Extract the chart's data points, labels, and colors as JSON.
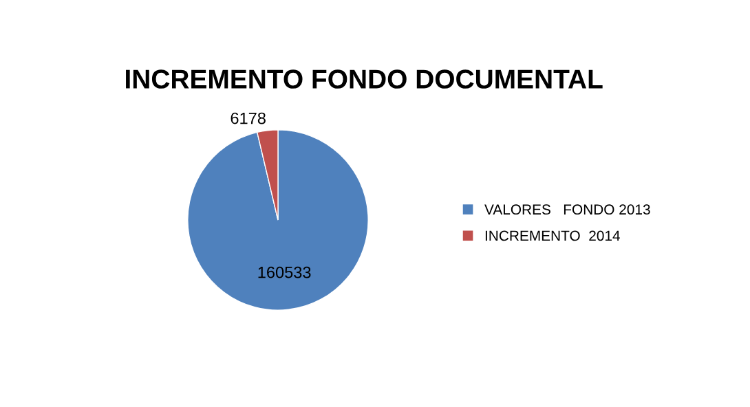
{
  "chart_data": {
    "type": "pie",
    "title": "INCREMENTO FONDO DOCUMENTAL",
    "categories": [
      "VALORES   FONDO 2013",
      "INCREMENTO  2014"
    ],
    "values": [
      160533,
      6178
    ],
    "colors": [
      "#4f81bd",
      "#c0504d"
    ],
    "data_labels": true,
    "legend": "right"
  }
}
